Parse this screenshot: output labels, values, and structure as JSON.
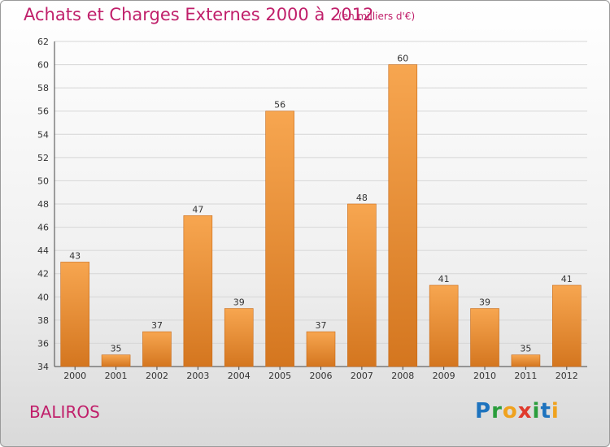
{
  "header": {
    "title": "Achats et Charges Externes 2000 à 2012",
    "subtitle": "(en milliers d'€)"
  },
  "footer": {
    "commune": "BALIROS",
    "logo_letters": [
      "P",
      "r",
      "o",
      "x",
      "i",
      "t",
      "i"
    ],
    "logo_colors": [
      "#1e73be",
      "#2a9d3c",
      "#f0a21e",
      "#e03a2c",
      "#2a9d3c",
      "#1e73be",
      "#f0a21e"
    ]
  },
  "chart_data": {
    "type": "bar",
    "categories": [
      "2000",
      "2001",
      "2002",
      "2003",
      "2004",
      "2005",
      "2006",
      "2007",
      "2008",
      "2009",
      "2010",
      "2011",
      "2012"
    ],
    "values": [
      43,
      35,
      37,
      47,
      39,
      56,
      37,
      48,
      60,
      41,
      39,
      35,
      41
    ],
    "title": "Achats et Charges Externes 2000 à 2012",
    "ylim": [
      34,
      62
    ],
    "yticks": [
      34,
      36,
      38,
      40,
      42,
      44,
      46,
      48,
      50,
      52,
      54,
      56,
      58,
      60,
      62
    ],
    "grid": true,
    "bar_color_top": "#f7a650",
    "bar_color_bottom": "#d4761f"
  }
}
